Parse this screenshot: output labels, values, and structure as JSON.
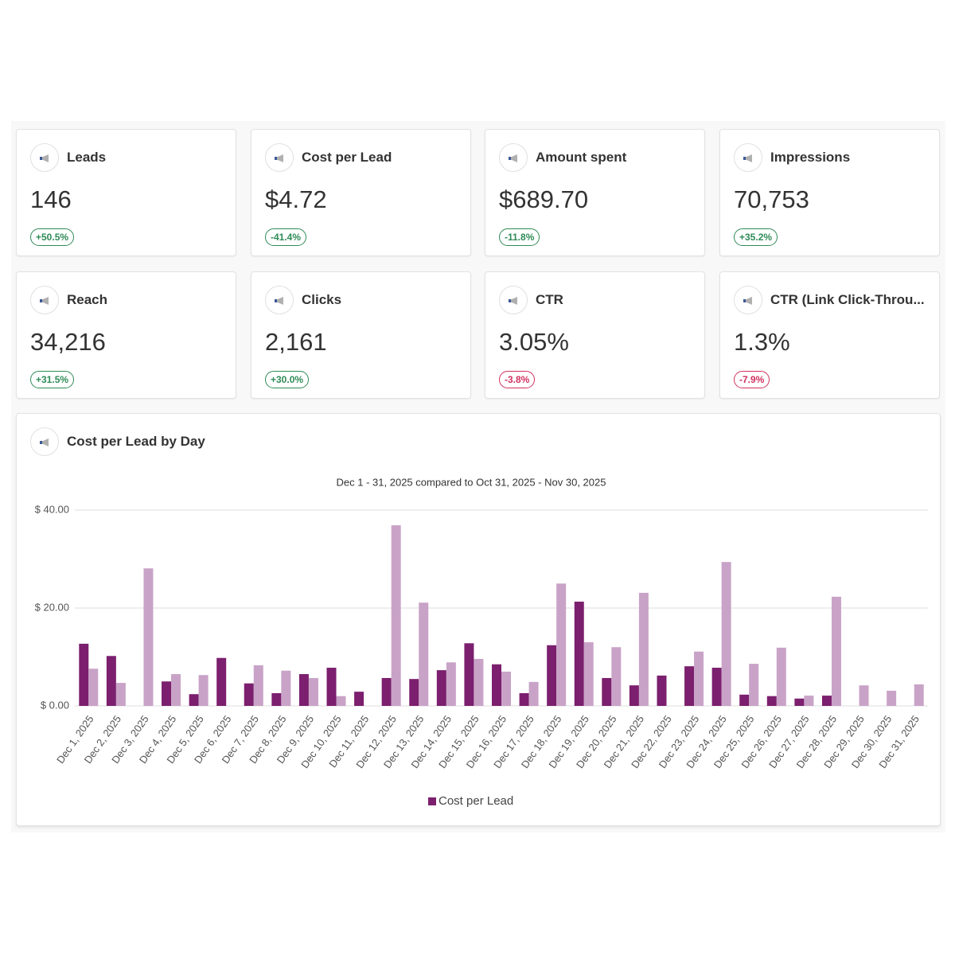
{
  "cards": [
    {
      "title": "Leads",
      "value": "146",
      "change": "+50.5%",
      "color": "#2e8b57"
    },
    {
      "title": "Cost per Lead",
      "value": "$4.72",
      "change": "-41.4%",
      "color": "#2e8b57"
    },
    {
      "title": "Amount spent",
      "value": "$689.70",
      "change": "-11.8%",
      "color": "#2e8b57"
    },
    {
      "title": "Impressions",
      "value": "70,753",
      "change": "+35.2%",
      "color": "#2e8b57"
    },
    {
      "title": "Reach",
      "value": "34,216",
      "change": "+31.5%",
      "color": "#2e8b57"
    },
    {
      "title": "Clicks",
      "value": "2,161",
      "change": "+30.0%",
      "color": "#2e8b57"
    },
    {
      "title": "CTR",
      "value": "3.05%",
      "change": "-3.8%",
      "color": "#d0325f"
    },
    {
      "title": "CTR (Link Click-Throu...",
      "value": "1.3%",
      "change": "-7.9%",
      "color": "#d0325f"
    }
  ],
  "chart_data": {
    "type": "bar",
    "title": "Cost per Lead by Day",
    "subtitle": "Dec 1 - 31, 2025 compared to Oct 31, 2025 - Nov 30, 2025",
    "categories": [
      "Dec 1, 2025",
      "Dec 2, 2025",
      "Dec 3, 2025",
      "Dec 4, 2025",
      "Dec 5, 2025",
      "Dec 6, 2025",
      "Dec 7, 2025",
      "Dec 8, 2025",
      "Dec 9, 2025",
      "Dec 10, 2025",
      "Dec 11, 2025",
      "Dec 12, 2025",
      "Dec 13, 2025",
      "Dec 14, 2025",
      "Dec 15, 2025",
      "Dec 16, 2025",
      "Dec 17, 2025",
      "Dec 18, 2025",
      "Dec 19, 2025",
      "Dec 20, 2025",
      "Dec 21, 2025",
      "Dec 22, 2025",
      "Dec 23, 2025",
      "Dec 24, 2025",
      "Dec 25, 2025",
      "Dec 26, 2025",
      "Dec 27, 2025",
      "Dec 28, 2025",
      "Dec 29, 2025",
      "Dec 30, 2025",
      "Dec 31, 2025"
    ],
    "series": [
      {
        "name": "Cost per Lead",
        "color": "#7b1f6e",
        "values": [
          12.7,
          10.2,
          null,
          5.0,
          2.4,
          9.8,
          4.6,
          2.6,
          6.5,
          7.8,
          2.9,
          5.7,
          5.5,
          7.3,
          12.8,
          8.5,
          2.6,
          12.4,
          21.3,
          5.7,
          4.2,
          6.2,
          8.1,
          7.8,
          2.3,
          2.0,
          1.5,
          2.1,
          null,
          null,
          null
        ]
      },
      {
        "color": "#c9a3c7",
        "values": [
          7.6,
          4.7,
          28.1,
          6.5,
          6.3,
          null,
          8.3,
          7.2,
          5.7,
          2.0,
          null,
          36.9,
          21.1,
          8.9,
          9.6,
          7.0,
          4.9,
          25.0,
          13.0,
          12.0,
          23.1,
          null,
          11.1,
          29.4,
          8.6,
          11.9,
          2.1,
          22.3,
          4.2,
          3.1,
          4.4
        ]
      }
    ],
    "ylim": [
      0,
      40
    ],
    "yticks": [
      {
        "value": 0,
        "label": "$ 0.00"
      },
      {
        "value": 20,
        "label": "$ 20.00"
      },
      {
        "value": 40,
        "label": "$ 40.00"
      }
    ],
    "grid": true
  }
}
